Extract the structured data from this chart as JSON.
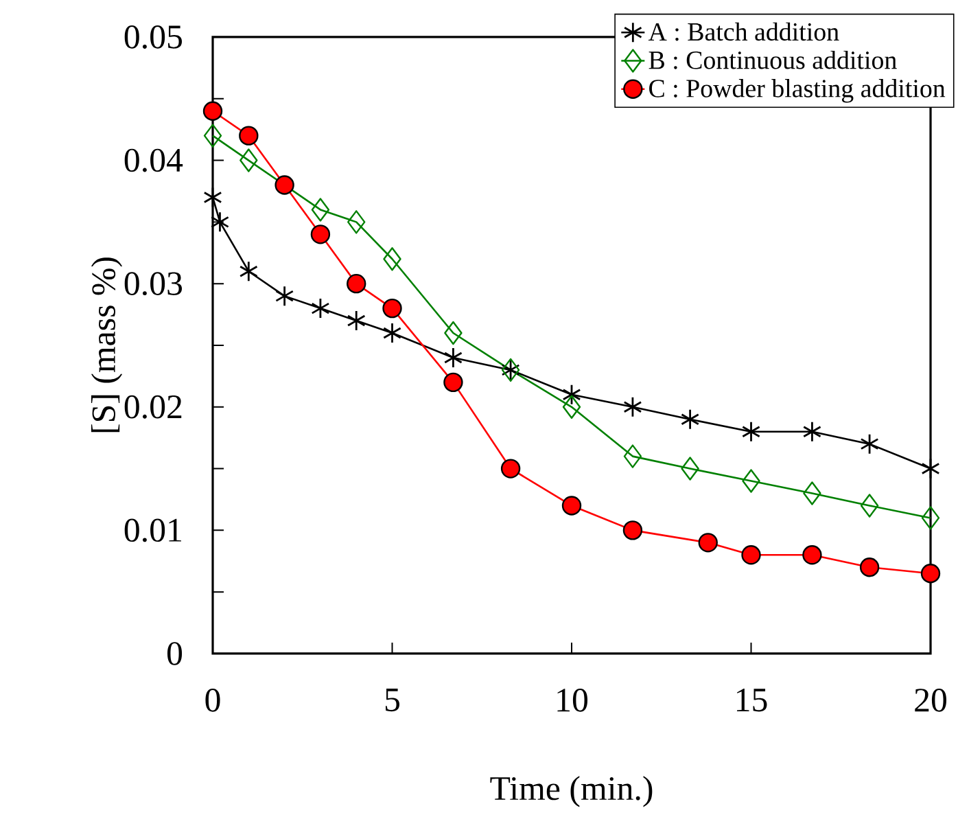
{
  "chart_data": {
    "type": "line",
    "xlabel": "Time (min.)",
    "ylabel": "[S] (mass %)",
    "xlim": [
      0,
      20
    ],
    "ylim": [
      0,
      0.05
    ],
    "xticks": [
      0,
      5,
      10,
      15,
      20
    ],
    "yticks": [
      0,
      {
        "value": 0.005,
        "label": null
      },
      0.01,
      {
        "value": 0.015,
        "label": null
      },
      0.02,
      {
        "value": 0.025,
        "label": null
      },
      0.03,
      {
        "value": 0.035,
        "label": null
      },
      0.04,
      {
        "value": 0.045,
        "label": null
      },
      0.05
    ],
    "legend": "top right",
    "grid": false,
    "series": [
      {
        "name": "A : Batch addition",
        "color": "#000000",
        "marker": "cross",
        "x": [
          0,
          0.2,
          1,
          2,
          3,
          4,
          5,
          6.7,
          8.3,
          10,
          11.7,
          13.3,
          15,
          16.7,
          18.3,
          20
        ],
        "values": [
          0.037,
          0.035,
          0.031,
          0.029,
          0.028,
          0.027,
          0.026,
          0.024,
          0.023,
          0.021,
          0.02,
          0.019,
          0.018,
          0.018,
          0.017,
          0.015
        ]
      },
      {
        "name": "B : Continuous addition",
        "color": "#008000",
        "marker": "diamond",
        "x": [
          0,
          1,
          2,
          3,
          4,
          5,
          6.7,
          8.3,
          10,
          11.7,
          13.3,
          15,
          16.7,
          18.3,
          20
        ],
        "values": [
          0.042,
          0.04,
          null,
          0.036,
          0.035,
          0.032,
          0.026,
          0.023,
          0.02,
          0.016,
          0.015,
          0.014,
          0.013,
          0.012,
          0.011
        ]
      },
      {
        "name": "C : Powder blasting addition",
        "color": "#ff0000",
        "marker": "circle",
        "x": [
          0,
          1,
          2,
          3,
          4,
          5,
          6.7,
          8.3,
          10,
          11.7,
          13.8,
          15,
          16.7,
          18.3,
          20
        ],
        "values": [
          0.044,
          0.042,
          0.038,
          0.034,
          0.03,
          0.028,
          0.022,
          0.015,
          0.012,
          0.01,
          0.009,
          0.008,
          0.008,
          0.007,
          0.0065
        ]
      }
    ]
  }
}
